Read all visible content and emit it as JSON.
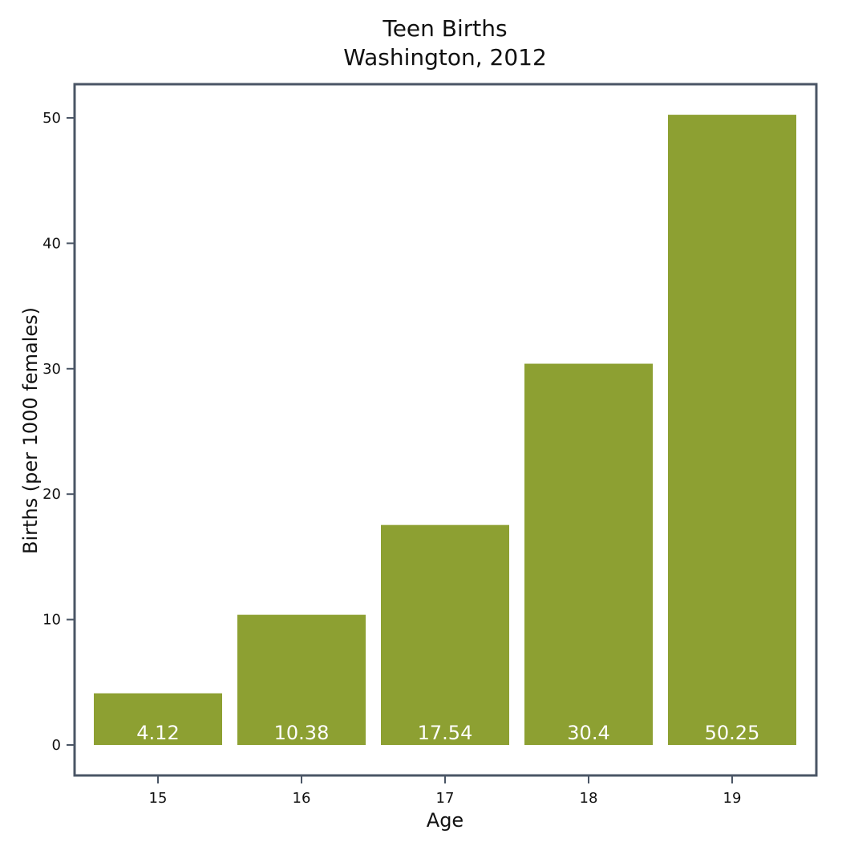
{
  "chart_data": {
    "type": "bar",
    "title": "Teen Births",
    "subtitle": "Washington, 2012",
    "xlabel": "Age",
    "ylabel": "Births (per 1000 females)",
    "categories": [
      "15",
      "16",
      "17",
      "18",
      "19"
    ],
    "values": [
      4.12,
      10.38,
      17.54,
      30.4,
      50.25
    ],
    "data_labels": [
      "4.12",
      "10.38",
      "17.54",
      "30.4",
      "50.25"
    ],
    "y_ticks": [
      0,
      10,
      20,
      30,
      40,
      50
    ],
    "ylim": [
      -2.4,
      53
    ],
    "grid": false,
    "legend": "none",
    "colors": {
      "bar": "#8da032",
      "frame": "#4a5565",
      "bar_label": "#ffffff",
      "text": "#111111"
    }
  }
}
